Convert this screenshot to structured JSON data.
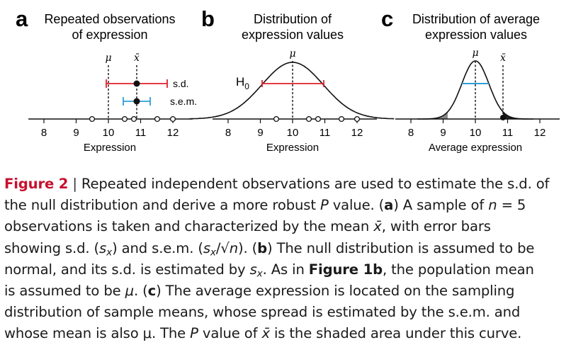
{
  "panels": [
    {
      "letter": "a",
      "title_lines": [
        "Repeated observations",
        "of expression"
      ],
      "xlabel": "Expression",
      "ticks": [
        "8",
        "9",
        "10",
        "11",
        "12"
      ],
      "mu": "μ",
      "xbar": "x̄",
      "sd_label": "s.d.",
      "sem_label": "s.e.m.",
      "observations": [
        9.5,
        10.5,
        10.8,
        11.5,
        12.0
      ],
      "mean": 10.86,
      "sd": 0.95,
      "sem": 0.42
    },
    {
      "letter": "b",
      "title_lines": [
        "Distribution of",
        "expression values"
      ],
      "xlabel": "Expression",
      "ticks": [
        "8",
        "9",
        "10",
        "11",
        "12"
      ],
      "mu": "μ",
      "h0": "H",
      "h0_sub": "0",
      "observations": [
        9.5,
        10.5,
        10.8,
        11.5,
        12.0
      ],
      "mu_value": 10,
      "sd": 0.95
    },
    {
      "letter": "c",
      "title_lines": [
        "Distribution of average",
        "expression values"
      ],
      "xlabel": "Average expression",
      "ticks": [
        "8",
        "9",
        "10",
        "11",
        "12"
      ],
      "mu": "μ",
      "xbar": "x̄",
      "mu_value": 10,
      "sem": 0.42,
      "xbar_value": 10.86
    }
  ],
  "colors": {
    "red": "#e0202a",
    "blue": "#2f9fd8",
    "fig_label": "#c8102e"
  },
  "caption": {
    "fig_label": "Figure 2",
    "sep": " | ",
    "l1": "Repeated independent observations are used to estimate the s.d. of",
    "l2a": "the null distribution and derive a more robust ",
    "l2b": "P",
    "l2c": " value. (",
    "l2d": "a",
    "l2e": ") A sample of ",
    "l2f": "n",
    "l2g": " = 5",
    "l3a": "observations is taken and characterized by the mean ",
    "l3b": "x̄",
    "l3c": ", with error bars",
    "l4a": "showing s.d. (",
    "l4b": "s",
    "l4c": "x",
    "l4d": ") and s.e.m. (",
    "l4e": "s",
    "l4f": "x",
    "l4g": "/√",
    "l4h": "n",
    "l4i": "). (",
    "l4j": "b",
    "l4k": ") The null distribution is assumed to be",
    "l5a": "normal, and its s.d. is estimated by ",
    "l5b": "s",
    "l5c": "x",
    "l5d": ". As in ",
    "l5e": "Figure 1b",
    "l5f": ", the population mean",
    "l6a": "is assumed to be ",
    "l6b": "μ",
    "l6c": ". (",
    "l6d": "c",
    "l6e": ") The average expression is located on the sampling",
    "l7": "distribution of sample means, whose spread is estimated by the s.e.m. and",
    "l8a": "whose mean is also μ. The ",
    "l8b": "P",
    "l8c": " value of ",
    "l8d": "x̄",
    "l8e": " is the shaded area under this curve."
  }
}
